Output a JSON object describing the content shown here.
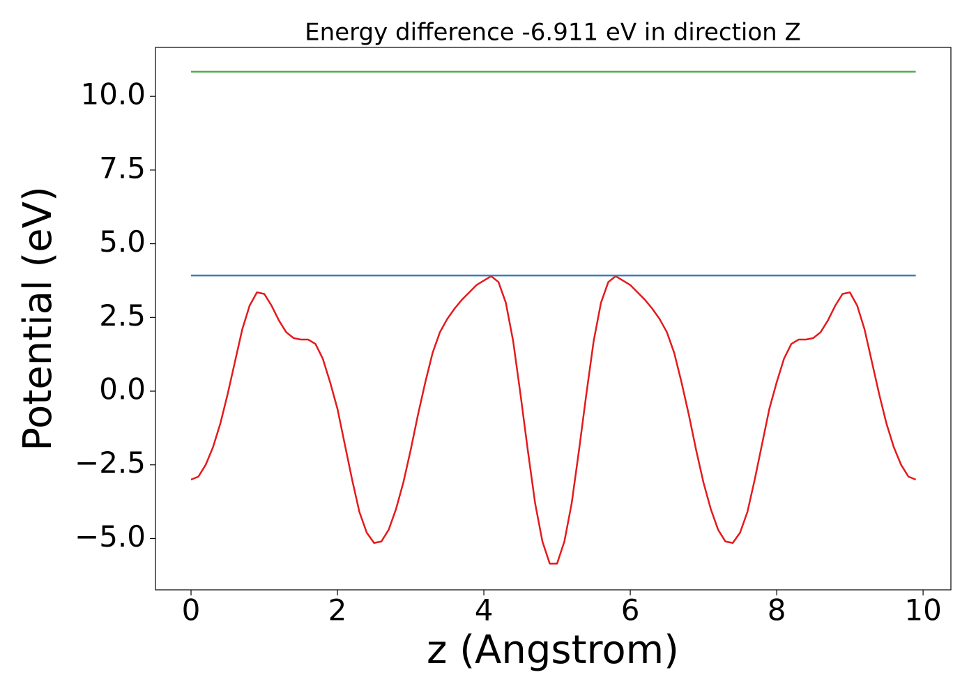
{
  "chart_data": {
    "type": "line",
    "title": "Energy difference -6.911 eV in direction Z",
    "x_label": "z (Angstrom)",
    "y_label": "Potential (eV)",
    "xlim": [
      -0.486,
      10.38
    ],
    "ylim": [
      -6.74,
      11.66
    ],
    "xticks": [
      0,
      2,
      4,
      6,
      8,
      10
    ],
    "yticks": [
      {
        "value": 10,
        "label": "10.0"
      },
      {
        "value": 7.5,
        "label": "7.5"
      },
      {
        "value": 5,
        "label": "5.0"
      },
      {
        "value": 2.5,
        "label": "2.5"
      },
      {
        "value": 0,
        "label": "0.0"
      },
      {
        "value": -2.5,
        "label": "−2.5"
      },
      {
        "value": -5,
        "label": "−5.0"
      }
    ],
    "series": [
      {
        "color": "#e41a1c",
        "x": [
          0,
          0.1,
          0.2,
          0.3,
          0.4,
          0.5,
          0.6,
          0.7,
          0.8,
          0.9,
          1,
          1.1,
          1.2,
          1.3,
          1.4,
          1.5,
          1.6,
          1.7,
          1.8,
          1.9,
          2,
          2.1,
          2.2,
          2.3,
          2.4,
          2.5,
          2.6,
          2.7,
          2.8,
          2.9,
          3,
          3.1,
          3.2,
          3.3,
          3.4,
          3.5,
          3.6,
          3.7,
          3.8,
          3.9,
          4,
          4.1,
          4.2,
          4.3,
          4.4,
          4.5,
          4.6,
          4.7,
          4.8,
          4.9,
          5,
          5.1,
          5.2,
          5.3,
          5.4,
          5.5,
          5.6,
          5.7,
          5.8,
          5.9,
          6,
          6.1,
          6.2,
          6.3,
          6.4,
          6.5,
          6.6,
          6.7,
          6.8,
          6.9,
          7,
          7.1,
          7.2,
          7.3,
          7.4,
          7.5,
          7.6,
          7.7,
          7.8,
          7.9,
          8,
          8.1,
          8.2,
          8.3,
          8.4,
          8.5,
          8.6,
          8.7,
          8.8,
          8.9,
          9,
          9.1,
          9.2,
          9.3,
          9.4,
          9.5,
          9.6,
          9.7,
          9.8,
          9.9
        ],
        "values": [
          -3.0,
          -2.9,
          -2.5,
          -1.9,
          -1.1,
          -0.1,
          1.0,
          2.1,
          2.9,
          3.35,
          3.3,
          2.9,
          2.4,
          2.0,
          1.8,
          1.75,
          1.75,
          1.6,
          1.1,
          0.3,
          -0.6,
          -1.8,
          -3.0,
          -4.1,
          -4.8,
          -5.15,
          -5.1,
          -4.7,
          -4.0,
          -3.1,
          -2.0,
          -0.8,
          0.3,
          1.3,
          2.0,
          2.45,
          2.8,
          3.1,
          3.35,
          3.6,
          3.75,
          3.9,
          3.7,
          3.0,
          1.7,
          -0.1,
          -2.0,
          -3.8,
          -5.1,
          -5.85,
          -5.85,
          -5.1,
          -3.8,
          -2.0,
          -0.1,
          1.7,
          3.0,
          3.7,
          3.9,
          3.75,
          3.6,
          3.35,
          3.1,
          2.8,
          2.45,
          2.0,
          1.3,
          0.3,
          -0.8,
          -2.0,
          -3.1,
          -4.0,
          -4.7,
          -5.1,
          -5.15,
          -4.8,
          -4.1,
          -3.0,
          -1.8,
          -0.6,
          0.3,
          1.1,
          1.6,
          1.75,
          1.75,
          1.8,
          2.0,
          2.4,
          2.9,
          3.3,
          3.35,
          2.9,
          2.1,
          1.0,
          -0.1,
          -1.1,
          -1.9,
          -2.5,
          -2.9,
          -3.0
        ]
      },
      {
        "color": "#377eb8",
        "x": [
          0,
          9.9
        ],
        "values": [
          3.924,
          3.924
        ]
      },
      {
        "color": "#4daf4a",
        "x": [
          0,
          9.9
        ],
        "values": [
          10.835,
          10.835
        ]
      }
    ]
  }
}
